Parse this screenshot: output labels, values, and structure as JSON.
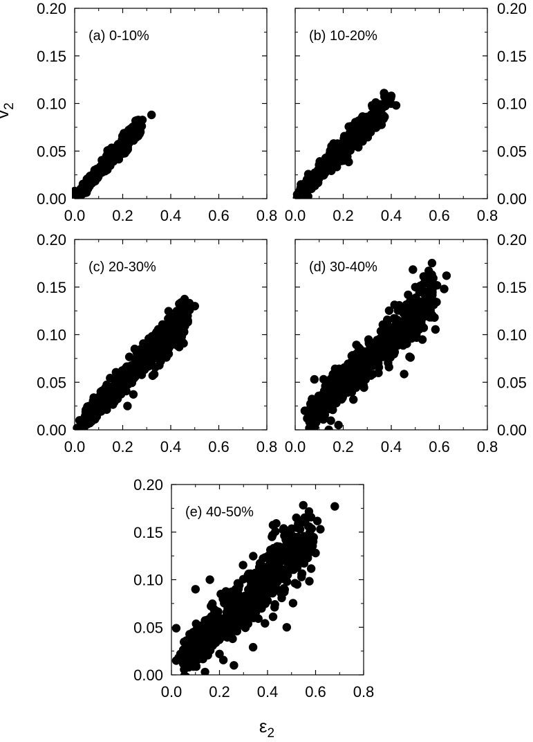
{
  "figure": {
    "ylabel_main": "v",
    "ylabel_sub": "2",
    "xlabel_main": "ε",
    "xlabel_sub": "2"
  },
  "chart_data": [
    {
      "type": "scatter",
      "panel": "a",
      "title": "(a) 0-10%",
      "xlim": [
        0,
        0.8
      ],
      "ylim": [
        0,
        0.2
      ],
      "xticks": [
        "0.0",
        "0.2",
        "0.4",
        "0.6",
        "0.8"
      ],
      "yticks": [
        "0.00",
        "0.05",
        "0.10",
        "0.15",
        "0.20"
      ],
      "ytick_side": "left",
      "cloud": {
        "x_range": [
          0.01,
          0.27
        ],
        "slope": 0.285,
        "intercept": 0.0,
        "spread": 0.004,
        "count": 420
      },
      "points": [
        [
          0.0,
          0.003
        ],
        [
          0.0,
          0.008
        ],
        [
          0.32,
          0.088
        ],
        [
          0.26,
          0.077
        ],
        [
          0.25,
          0.073
        ],
        [
          0.26,
          0.066
        ]
      ]
    },
    {
      "type": "scatter",
      "panel": "b",
      "title": "(b) 10-20%",
      "xlim": [
        0,
        0.8
      ],
      "ylim": [
        0,
        0.2
      ],
      "xticks": [
        "0.0",
        "0.2",
        "0.4",
        "0.6",
        "0.8"
      ],
      "yticks": [
        "0.00",
        "0.05",
        "0.10",
        "0.15",
        "0.20"
      ],
      "ytick_side": "right",
      "cloud": {
        "x_range": [
          0.02,
          0.38
        ],
        "slope": 0.265,
        "intercept": 0.0,
        "spread": 0.006,
        "count": 480
      },
      "points": [
        [
          0.37,
          0.111
        ],
        [
          0.4,
          0.108
        ],
        [
          0.42,
          0.098
        ],
        [
          0.38,
          0.104
        ],
        [
          0.32,
          0.098
        ],
        [
          0.2,
          0.04
        ],
        [
          0.16,
          0.058
        ],
        [
          0.01,
          0.0
        ]
      ]
    },
    {
      "type": "scatter",
      "panel": "c",
      "title": "(c) 20-30%",
      "xlim": [
        0,
        0.8
      ],
      "ylim": [
        0,
        0.2
      ],
      "xticks": [
        "0.0",
        "0.2",
        "0.4",
        "0.6",
        "0.8"
      ],
      "yticks": [
        "0.00",
        "0.05",
        "0.10",
        "0.15",
        "0.20"
      ],
      "ytick_side": "left",
      "cloud": {
        "x_range": [
          0.04,
          0.47
        ],
        "slope": 0.255,
        "intercept": 0.0,
        "spread": 0.008,
        "count": 520
      },
      "points": [
        [
          0.5,
          0.13
        ],
        [
          0.48,
          0.128
        ],
        [
          0.44,
          0.12
        ],
        [
          0.46,
          0.112
        ],
        [
          0.01,
          0.002
        ],
        [
          0.02,
          0.01
        ],
        [
          0.06,
          0.025
        ],
        [
          0.22,
          0.025
        ],
        [
          0.36,
          0.08
        ],
        [
          0.25,
          0.085
        ]
      ]
    },
    {
      "type": "scatter",
      "panel": "d",
      "title": "(d) 30-40%",
      "xlim": [
        0,
        0.8
      ],
      "ylim": [
        0,
        0.2
      ],
      "xticks": [
        "0.0",
        "0.2",
        "0.4",
        "0.6",
        "0.8"
      ],
      "yticks": [
        "0.00",
        "0.05",
        "0.10",
        "0.15",
        "0.20"
      ],
      "ytick_side": "right",
      "cloud": {
        "x_range": [
          0.06,
          0.58
        ],
        "slope": 0.245,
        "intercept": 0.0,
        "spread": 0.012,
        "count": 560
      },
      "points": [
        [
          0.63,
          0.162
        ],
        [
          0.62,
          0.148
        ],
        [
          0.55,
          0.154
        ],
        [
          0.5,
          0.15
        ],
        [
          0.58,
          0.118
        ],
        [
          0.48,
          0.076
        ],
        [
          0.08,
          0.053
        ],
        [
          0.05,
          0.012
        ],
        [
          0.04,
          0.02
        ],
        [
          0.14,
          0.0
        ],
        [
          0.18,
          0.005
        ],
        [
          0.35,
          0.075
        ],
        [
          0.25,
          0.045
        ],
        [
          0.56,
          0.138
        ]
      ]
    },
    {
      "type": "scatter",
      "panel": "e",
      "title": "(e) 40-50%",
      "xlim": [
        0,
        0.8
      ],
      "ylim": [
        0,
        0.2
      ],
      "xticks": [
        "0.0",
        "0.2",
        "0.4",
        "0.6",
        "0.8"
      ],
      "yticks": [
        "0.00",
        "0.05",
        "0.10",
        "0.15",
        "0.20"
      ],
      "ytick_side": "left",
      "cloud": {
        "x_range": [
          0.05,
          0.58
        ],
        "slope": 0.24,
        "intercept": 0.005,
        "spread": 0.016,
        "count": 620
      },
      "points": [
        [
          0.68,
          0.177
        ],
        [
          0.62,
          0.153
        ],
        [
          0.57,
          0.156
        ],
        [
          0.6,
          0.128
        ],
        [
          0.59,
          0.14
        ],
        [
          0.52,
          0.165
        ],
        [
          0.02,
          0.049
        ],
        [
          0.03,
          0.018
        ],
        [
          0.02,
          0.015
        ],
        [
          0.06,
          0.01
        ],
        [
          0.1,
          0.09
        ],
        [
          0.14,
          0.003
        ],
        [
          0.26,
          0.01
        ],
        [
          0.34,
          0.029
        ],
        [
          0.16,
          0.1
        ],
        [
          0.2,
          0.022
        ],
        [
          0.48,
          0.05
        ],
        [
          0.44,
          0.135
        ]
      ]
    }
  ]
}
